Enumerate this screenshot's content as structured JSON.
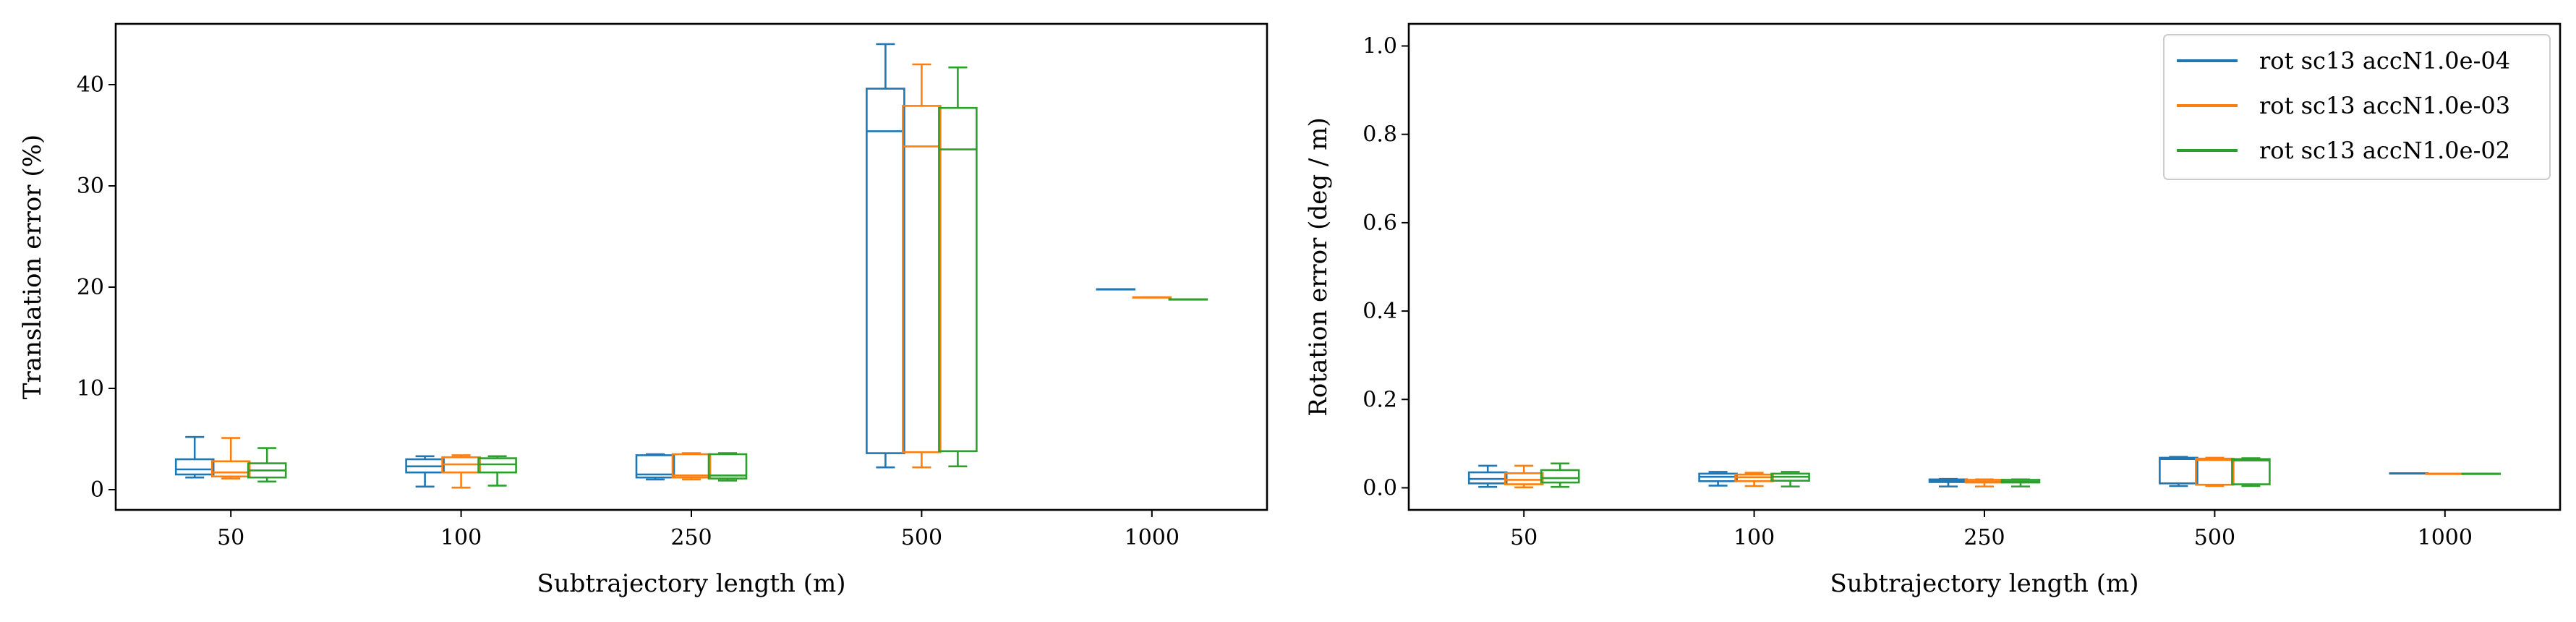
{
  "chart_data": [
    {
      "type": "box",
      "title": "",
      "xlabel": "Subtrajectory length (m)",
      "ylabel": "Translation error (%)",
      "ylim": [
        -2,
        46
      ],
      "yticks": [
        0,
        10,
        20,
        30,
        40
      ],
      "categories": [
        "50",
        "100",
        "250",
        "500",
        "1000"
      ],
      "grid": false,
      "series": [
        {
          "color": "#1f77b4",
          "boxes": [
            {
              "whislo": 1.2,
              "q1": 1.5,
              "med": 2.0,
              "q3": 3.0,
              "whishi": 5.2
            },
            {
              "whislo": 0.3,
              "q1": 1.7,
              "med": 2.3,
              "q3": 3.0,
              "whishi": 3.3
            },
            {
              "whislo": 1.0,
              "q1": 1.2,
              "med": 1.5,
              "q3": 3.4,
              "whishi": 3.5
            },
            {
              "whislo": 2.2,
              "q1": 3.6,
              "med": 35.4,
              "q3": 39.6,
              "whishi": 44.0
            },
            {
              "whislo": 19.8,
              "q1": 19.8,
              "med": 19.8,
              "q3": 19.8,
              "whishi": 19.8
            }
          ]
        },
        {
          "color": "#ff7f0e",
          "boxes": [
            {
              "whislo": 1.1,
              "q1": 1.3,
              "med": 1.7,
              "q3": 2.8,
              "whishi": 5.1
            },
            {
              "whislo": 0.2,
              "q1": 1.7,
              "med": 2.5,
              "q3": 3.2,
              "whishi": 3.4
            },
            {
              "whislo": 1.0,
              "q1": 1.2,
              "med": 1.4,
              "q3": 3.5,
              "whishi": 3.6
            },
            {
              "whislo": 2.2,
              "q1": 3.7,
              "med": 33.9,
              "q3": 37.9,
              "whishi": 42.0
            },
            {
              "whislo": 19.0,
              "q1": 19.0,
              "med": 19.0,
              "q3": 19.0,
              "whishi": 19.0
            }
          ]
        },
        {
          "color": "#2ca02c",
          "boxes": [
            {
              "whislo": 0.8,
              "q1": 1.2,
              "med": 1.9,
              "q3": 2.6,
              "whishi": 4.1
            },
            {
              "whislo": 0.4,
              "q1": 1.7,
              "med": 2.5,
              "q3": 3.1,
              "whishi": 3.3
            },
            {
              "whislo": 0.9,
              "q1": 1.1,
              "med": 1.4,
              "q3": 3.5,
              "whishi": 3.6
            },
            {
              "whislo": 2.3,
              "q1": 3.8,
              "med": 33.6,
              "q3": 37.7,
              "whishi": 41.7
            },
            {
              "whislo": 18.8,
              "q1": 18.8,
              "med": 18.8,
              "q3": 18.8,
              "whishi": 18.8
            }
          ]
        }
      ]
    },
    {
      "type": "box",
      "title": "",
      "xlabel": "Subtrajectory length (m)",
      "ylabel": "Rotation error (deg / m)",
      "ylim": [
        -0.05,
        1.05
      ],
      "yticks": [
        0.0,
        0.2,
        0.4,
        0.6,
        0.8,
        1.0
      ],
      "categories": [
        "50",
        "100",
        "250",
        "500",
        "1000"
      ],
      "grid": false,
      "legend_position": "top-right",
      "series": [
        {
          "name": "rot sc13 accN1.0e-04",
          "color": "#1f77b4",
          "boxes": [
            {
              "whislo": 0.002,
              "q1": 0.01,
              "med": 0.02,
              "q3": 0.035,
              "whishi": 0.05
            },
            {
              "whislo": 0.005,
              "q1": 0.015,
              "med": 0.025,
              "q3": 0.032,
              "whishi": 0.036
            },
            {
              "whislo": 0.003,
              "q1": 0.013,
              "med": 0.015,
              "q3": 0.019,
              "whishi": 0.02
            },
            {
              "whislo": 0.004,
              "q1": 0.01,
              "med": 0.065,
              "q3": 0.068,
              "whishi": 0.07
            },
            {
              "whislo": 0.033,
              "q1": 0.033,
              "med": 0.033,
              "q3": 0.033,
              "whishi": 0.033
            }
          ]
        },
        {
          "name": "rot sc13 accN1.0e-03",
          "color": "#ff7f0e",
          "boxes": [
            {
              "whislo": 0.001,
              "q1": 0.008,
              "med": 0.018,
              "q3": 0.033,
              "whishi": 0.05
            },
            {
              "whislo": 0.004,
              "q1": 0.015,
              "med": 0.024,
              "q3": 0.03,
              "whishi": 0.034
            },
            {
              "whislo": 0.003,
              "q1": 0.012,
              "med": 0.014,
              "q3": 0.018,
              "whishi": 0.019
            },
            {
              "whislo": 0.004,
              "q1": 0.007,
              "med": 0.063,
              "q3": 0.066,
              "whishi": 0.068
            },
            {
              "whislo": 0.032,
              "q1": 0.032,
              "med": 0.032,
              "q3": 0.032,
              "whishi": 0.032
            }
          ]
        },
        {
          "name": "rot sc13 accN1.0e-02",
          "color": "#2ca02c",
          "boxes": [
            {
              "whislo": 0.002,
              "q1": 0.012,
              "med": 0.022,
              "q3": 0.04,
              "whishi": 0.055
            },
            {
              "whislo": 0.003,
              "q1": 0.016,
              "med": 0.025,
              "q3": 0.032,
              "whishi": 0.036
            },
            {
              "whislo": 0.003,
              "q1": 0.012,
              "med": 0.014,
              "q3": 0.018,
              "whishi": 0.019
            },
            {
              "whislo": 0.004,
              "q1": 0.008,
              "med": 0.062,
              "q3": 0.065,
              "whishi": 0.067
            },
            {
              "whislo": 0.032,
              "q1": 0.032,
              "med": 0.032,
              "q3": 0.032,
              "whishi": 0.032
            }
          ]
        }
      ]
    }
  ]
}
